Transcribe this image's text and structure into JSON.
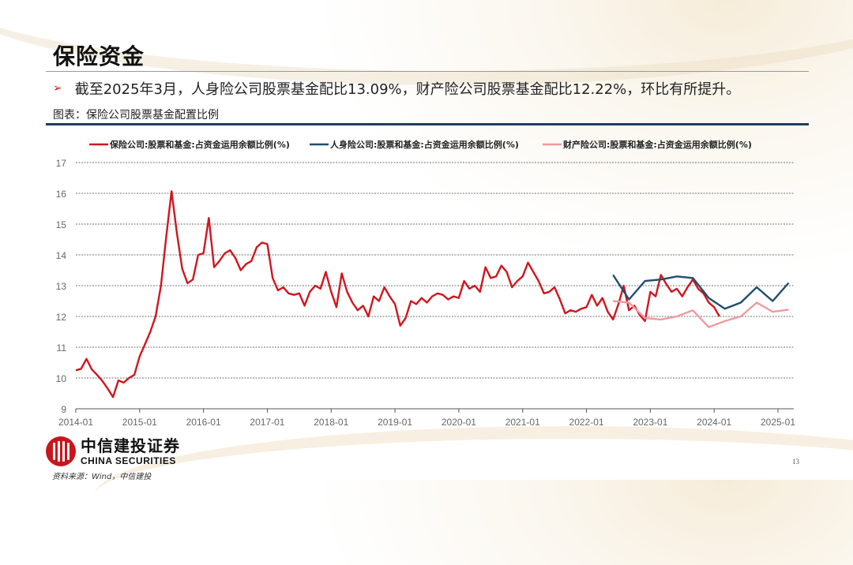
{
  "slide": {
    "title": "保险资金",
    "bullet": "截至2025年3月，人身险公司股票基金配比13.09%，财产险公司股票基金配比12.22%，环比有所提升。",
    "figure_caption": "图表：保险公司股票基金配置比例",
    "logo_cn": "中信建投证券",
    "logo_en": "CHINA SECURITIES",
    "source": "资料来源：Wind，中信建投",
    "page_number": "13"
  },
  "colors": {
    "insurance_total": "#d0161f",
    "life_insurance": "#1f4e6e",
    "property_insurance": "#ee9a9e",
    "title_rule": "#1f3d5c",
    "accent_red": "#c8161d"
  },
  "chart_data": {
    "type": "line",
    "title": "",
    "xlabel": "",
    "ylabel": "",
    "ylim": [
      9,
      17
    ],
    "yticks": [
      9,
      10,
      11,
      12,
      13,
      14,
      15,
      16,
      17
    ],
    "xticks": [
      "2014-01",
      "2015-01",
      "2016-01",
      "2017-01",
      "2018-01",
      "2019-01",
      "2020-01",
      "2021-01",
      "2022-01",
      "2023-01",
      "2024-01",
      "2025-01"
    ],
    "grid": "horizontal dashed",
    "legend_position": "top",
    "series": [
      {
        "name": "保险公司:股票和基金:占资金运用余额比例(%)",
        "color": "#d0161f",
        "frequency": "monthly",
        "start": "2014-01",
        "values": [
          10.25,
          10.3,
          10.62,
          10.28,
          10.1,
          9.9,
          9.65,
          9.38,
          9.92,
          9.85,
          10.0,
          10.1,
          10.7,
          11.1,
          11.5,
          12.0,
          13.0,
          14.6,
          16.07,
          14.7,
          13.55,
          13.08,
          13.2,
          14.0,
          14.05,
          15.2,
          13.6,
          13.8,
          14.05,
          14.15,
          13.9,
          13.5,
          13.7,
          13.8,
          14.25,
          14.4,
          14.35,
          13.25,
          12.85,
          12.95,
          12.75,
          12.7,
          12.75,
          12.35,
          12.8,
          13.0,
          12.9,
          13.45,
          12.8,
          12.3,
          13.4,
          12.8,
          12.45,
          12.2,
          12.35,
          12.0,
          12.65,
          12.5,
          12.95,
          12.65,
          12.4,
          11.7,
          11.95,
          12.5,
          12.4,
          12.6,
          12.45,
          12.65,
          12.75,
          12.7,
          12.55,
          12.65,
          12.6,
          13.15,
          12.9,
          13.0,
          12.8,
          13.6,
          13.25,
          13.3,
          13.65,
          13.45,
          12.95,
          13.15,
          13.3,
          13.75,
          13.45,
          13.15,
          12.75,
          12.8,
          12.95,
          12.55,
          12.1,
          12.2,
          12.15,
          12.25,
          12.3,
          12.7,
          12.35,
          12.6,
          12.15,
          11.9,
          12.4,
          13.0,
          12.2,
          12.35,
          12.05,
          11.85,
          12.8,
          12.65,
          13.35,
          13.05,
          12.8,
          12.9,
          12.65,
          12.95,
          13.2,
          12.9,
          12.75,
          12.45,
          12.3,
          12.0
        ]
      },
      {
        "name": "人身险公司:股票和基金:占资金运用余额比例(%)",
        "color": "#1f4e6e",
        "frequency": "quarterly",
        "x": [
          "2022-06",
          "2022-09",
          "2022-12",
          "2023-03",
          "2023-06",
          "2023-09",
          "2023-12",
          "2024-03",
          "2024-06",
          "2024-09",
          "2024-12",
          "2025-03"
        ],
        "values": [
          13.35,
          12.55,
          13.15,
          13.2,
          13.3,
          13.25,
          12.6,
          12.25,
          12.45,
          12.95,
          12.5,
          13.09
        ]
      },
      {
        "name": "财产险公司:股票和基金:占资金运用余额比例(%)",
        "color": "#ee9a9e",
        "frequency": "quarterly",
        "x": [
          "2022-06",
          "2022-09",
          "2022-12",
          "2023-03",
          "2023-06",
          "2023-09",
          "2023-12",
          "2024-03",
          "2024-06",
          "2024-09",
          "2024-12",
          "2025-03"
        ],
        "values": [
          12.5,
          12.45,
          11.95,
          11.9,
          12.0,
          12.2,
          11.65,
          11.85,
          12.0,
          12.45,
          12.15,
          12.22
        ]
      }
    ]
  }
}
